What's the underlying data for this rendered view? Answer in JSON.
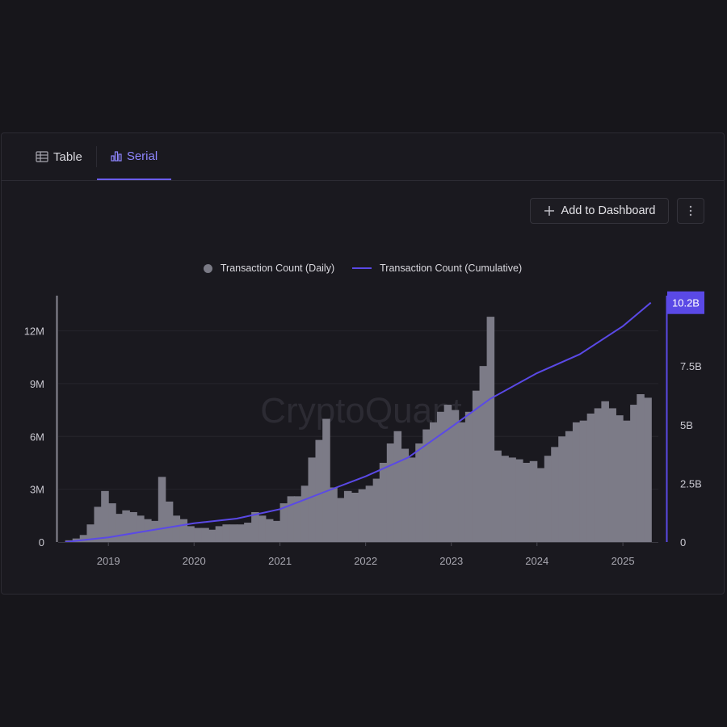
{
  "tabs": [
    {
      "label": "Table",
      "icon": "table-icon",
      "active": false
    },
    {
      "label": "Serial",
      "icon": "bar-chart-icon",
      "active": true
    }
  ],
  "toolbar": {
    "add_label": "Add to Dashboard",
    "more_icon": "more-vertical-icon"
  },
  "watermark": "CryptoQuant",
  "colors": {
    "accent": "#6b5cf0",
    "line": "#5a49e6",
    "bars": "#7c7b87",
    "background": "#17161b"
  },
  "chart_data": {
    "type": "bar",
    "title": "",
    "legend_position": "top-center",
    "x_ticks": [
      "2019",
      "2020",
      "2021",
      "2022",
      "2023",
      "2024",
      "2025"
    ],
    "x_range": [
      "2018-06",
      "2025-06"
    ],
    "y_left": {
      "ticks": [
        "0",
        "3M",
        "6M",
        "9M",
        "12M"
      ],
      "range": [
        0,
        14000000
      ]
    },
    "y_right": {
      "ticks": [
        "0",
        "2.5B",
        "5B",
        "7.5B"
      ],
      "range": [
        0,
        10500000000
      ]
    },
    "last_value_label": "10.2B",
    "series": [
      {
        "name": "Transaction Count (Daily)",
        "type": "bar",
        "axis": "left",
        "points": [
          [
            "2018-07-01",
            100000
          ],
          [
            "2018-08-01",
            200000
          ],
          [
            "2018-09-01",
            400000
          ],
          [
            "2018-10-01",
            1000000
          ],
          [
            "2018-11-01",
            2000000
          ],
          [
            "2018-12-01",
            2900000
          ],
          [
            "2019-01-01",
            2200000
          ],
          [
            "2019-02-01",
            1600000
          ],
          [
            "2019-03-01",
            1800000
          ],
          [
            "2019-04-01",
            1700000
          ],
          [
            "2019-05-01",
            1500000
          ],
          [
            "2019-06-01",
            1300000
          ],
          [
            "2019-07-01",
            1200000
          ],
          [
            "2019-08-01",
            3700000
          ],
          [
            "2019-09-01",
            2300000
          ],
          [
            "2019-10-01",
            1500000
          ],
          [
            "2019-11-01",
            1300000
          ],
          [
            "2019-12-01",
            900000
          ],
          [
            "2020-01-01",
            800000
          ],
          [
            "2020-02-01",
            800000
          ],
          [
            "2020-03-01",
            700000
          ],
          [
            "2020-04-01",
            900000
          ],
          [
            "2020-05-01",
            1000000
          ],
          [
            "2020-06-01",
            1000000
          ],
          [
            "2020-07-01",
            1000000
          ],
          [
            "2020-08-01",
            1100000
          ],
          [
            "2020-09-01",
            1700000
          ],
          [
            "2020-10-01",
            1500000
          ],
          [
            "2020-11-01",
            1300000
          ],
          [
            "2020-12-01",
            1200000
          ],
          [
            "2021-01-01",
            2200000
          ],
          [
            "2021-02-01",
            2600000
          ],
          [
            "2021-03-01",
            2600000
          ],
          [
            "2021-04-01",
            3200000
          ],
          [
            "2021-05-01",
            4800000
          ],
          [
            "2021-06-01",
            5800000
          ],
          [
            "2021-07-01",
            7000000
          ],
          [
            "2021-08-01",
            3100000
          ],
          [
            "2021-09-01",
            2500000
          ],
          [
            "2021-10-01",
            2900000
          ],
          [
            "2021-11-01",
            2800000
          ],
          [
            "2021-12-01",
            3000000
          ],
          [
            "2022-01-01",
            3200000
          ],
          [
            "2022-02-01",
            3600000
          ],
          [
            "2022-03-01",
            4500000
          ],
          [
            "2022-04-01",
            5600000
          ],
          [
            "2022-05-01",
            6300000
          ],
          [
            "2022-06-01",
            5300000
          ],
          [
            "2022-07-01",
            4800000
          ],
          [
            "2022-08-01",
            5600000
          ],
          [
            "2022-09-01",
            6400000
          ],
          [
            "2022-10-01",
            6800000
          ],
          [
            "2022-11-01",
            7400000
          ],
          [
            "2022-12-01",
            7800000
          ],
          [
            "2023-01-01",
            7500000
          ],
          [
            "2023-02-01",
            6800000
          ],
          [
            "2023-03-01",
            7400000
          ],
          [
            "2023-04-01",
            8600000
          ],
          [
            "2023-05-01",
            10000000
          ],
          [
            "2023-06-01",
            12800000
          ],
          [
            "2023-07-01",
            5200000
          ],
          [
            "2023-08-01",
            4900000
          ],
          [
            "2023-09-01",
            4800000
          ],
          [
            "2023-10-01",
            4700000
          ],
          [
            "2023-11-01",
            4500000
          ],
          [
            "2023-12-01",
            4600000
          ],
          [
            "2024-01-01",
            4200000
          ],
          [
            "2024-02-01",
            4900000
          ],
          [
            "2024-03-01",
            5400000
          ],
          [
            "2024-04-01",
            6000000
          ],
          [
            "2024-05-01",
            6300000
          ],
          [
            "2024-06-01",
            6800000
          ],
          [
            "2024-07-01",
            6900000
          ],
          [
            "2024-08-01",
            7300000
          ],
          [
            "2024-09-01",
            7600000
          ],
          [
            "2024-10-01",
            8000000
          ],
          [
            "2024-11-01",
            7600000
          ],
          [
            "2024-12-01",
            7200000
          ],
          [
            "2025-01-01",
            6900000
          ],
          [
            "2025-02-01",
            7800000
          ],
          [
            "2025-03-01",
            8400000
          ],
          [
            "2025-04-01",
            8200000
          ]
        ]
      },
      {
        "name": "Transaction Count (Cumulative)",
        "type": "line",
        "axis": "right",
        "points": [
          [
            "2018-07-01",
            0
          ],
          [
            "2019-01-01",
            200000000
          ],
          [
            "2019-07-01",
            500000000
          ],
          [
            "2020-01-01",
            800000000
          ],
          [
            "2020-07-01",
            1000000000
          ],
          [
            "2021-01-01",
            1400000000
          ],
          [
            "2021-07-01",
            2100000000
          ],
          [
            "2022-01-01",
            2800000000
          ],
          [
            "2022-07-01",
            3600000000
          ],
          [
            "2023-01-01",
            4900000000
          ],
          [
            "2023-06-15",
            6100000000
          ],
          [
            "2024-01-01",
            7200000000
          ],
          [
            "2024-07-01",
            8000000000
          ],
          [
            "2025-01-01",
            9200000000
          ],
          [
            "2025-04-30",
            10200000000
          ]
        ]
      }
    ]
  }
}
